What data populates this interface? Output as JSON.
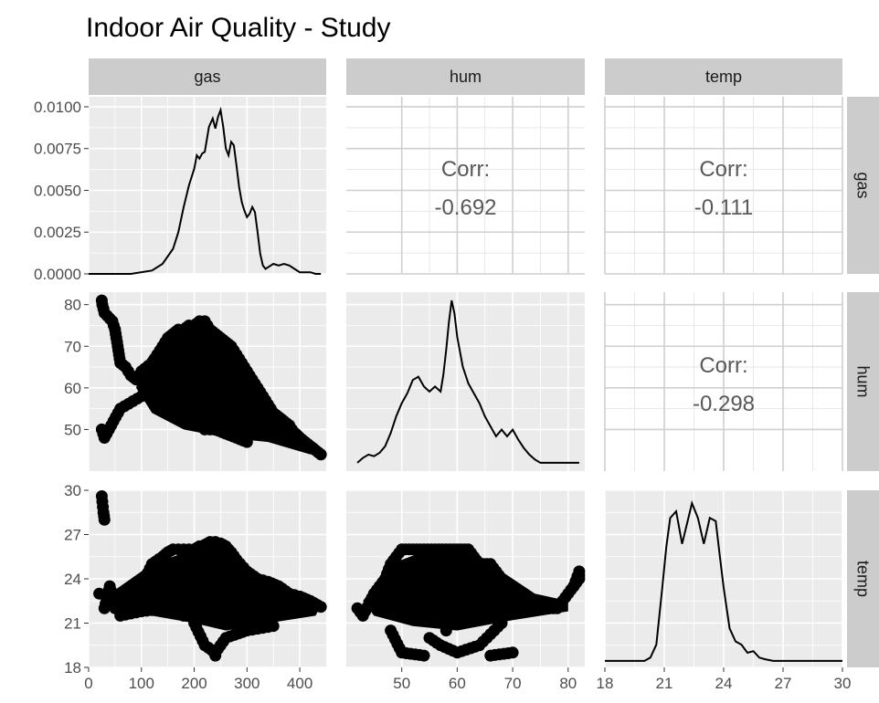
{
  "title": "Indoor Air Quality - Study",
  "chart_data": {
    "type": "scatter",
    "title": "Indoor Air Quality - Study",
    "layout": "pairs plot (3x3 matrix)",
    "variables": [
      "gas",
      "hum",
      "temp"
    ],
    "strip_labels": {
      "columns": [
        "gas",
        "hum",
        "temp"
      ],
      "rows": [
        "gas",
        "hum",
        "temp"
      ]
    },
    "axes": {
      "gas": {
        "lim": [
          0,
          450
        ],
        "ticks": [
          "0",
          "100",
          "200",
          "300",
          "400"
        ],
        "tick_values": [
          0,
          100,
          200,
          300,
          400
        ]
      },
      "hum": {
        "lim": [
          40,
          83
        ],
        "ticks": [
          "50",
          "60",
          "70",
          "80"
        ],
        "tick_values": [
          50,
          60,
          70,
          80
        ]
      },
      "temp": {
        "lim": [
          18,
          30
        ],
        "ticks": [
          "18",
          "21",
          "24",
          "27",
          "30"
        ],
        "tick_values": [
          18,
          21,
          24,
          27,
          30
        ]
      },
      "gas_density": {
        "lim": [
          0,
          0.0106
        ],
        "ticks": [
          "0.0000",
          "0.0025",
          "0.0050",
          "0.0075",
          "0.0100"
        ],
        "tick_values": [
          0,
          0.0025,
          0.005,
          0.0075,
          0.01
        ]
      }
    },
    "correlations": [
      {
        "row": "gas",
        "col": "hum",
        "label": "Corr:",
        "value": "-0.692"
      },
      {
        "row": "gas",
        "col": "temp",
        "label": "Corr:",
        "value": "-0.111"
      },
      {
        "row": "hum",
        "col": "temp",
        "label": "Corr:",
        "value": "-0.298"
      }
    ],
    "densities": {
      "gas": {
        "x": [
          0,
          80,
          120,
          140,
          160,
          170,
          180,
          190,
          200,
          205,
          210,
          215,
          220,
          228,
          235,
          240,
          245,
          250,
          255,
          260,
          265,
          270,
          275,
          280,
          285,
          290,
          295,
          300,
          305,
          310,
          315,
          320,
          325,
          330,
          335,
          340,
          350,
          360,
          370,
          380,
          390,
          400,
          410,
          420,
          430,
          440
        ],
        "y": [
          0,
          0,
          0.0002,
          0.0006,
          0.0015,
          0.0025,
          0.004,
          0.0053,
          0.0063,
          0.0071,
          0.0069,
          0.0072,
          0.0073,
          0.0088,
          0.0093,
          0.0087,
          0.0094,
          0.0098,
          0.0088,
          0.0075,
          0.0071,
          0.0079,
          0.0077,
          0.0065,
          0.0052,
          0.0043,
          0.0038,
          0.0034,
          0.0036,
          0.004,
          0.0037,
          0.0025,
          0.0012,
          0.0005,
          0.0003,
          0.0004,
          0.0006,
          0.0005,
          0.0006,
          0.0005,
          0.0003,
          0.0001,
          0.0001,
          0.0001,
          0,
          0
        ]
      },
      "hum": {
        "x": [
          42,
          43,
          44,
          45,
          46,
          47,
          48,
          49,
          50,
          51,
          52,
          53,
          54,
          55,
          56,
          57,
          57.5,
          58,
          58.5,
          59,
          59.5,
          60,
          61,
          62,
          63,
          64,
          65,
          66,
          67,
          68,
          69,
          70,
          71,
          72,
          73,
          74,
          75,
          76,
          77,
          78,
          79,
          80,
          81,
          82
        ],
        "y": [
          0.02,
          0.05,
          0.07,
          0.06,
          0.08,
          0.12,
          0.2,
          0.3,
          0.38,
          0.44,
          0.52,
          0.54,
          0.48,
          0.45,
          0.48,
          0.45,
          0.55,
          0.7,
          0.87,
          1.0,
          0.92,
          0.78,
          0.6,
          0.5,
          0.44,
          0.38,
          0.3,
          0.24,
          0.18,
          0.22,
          0.18,
          0.22,
          0.16,
          0.11,
          0.07,
          0.04,
          0.02,
          0.02,
          0.02,
          0.02,
          0.02,
          0.02,
          0.02,
          0.02
        ],
        "note": "relative density"
      },
      "temp": {
        "x": [
          18,
          20,
          20.3,
          20.6,
          20.9,
          21.1,
          21.3,
          21.6,
          21.9,
          22.2,
          22.4,
          22.7,
          23.0,
          23.3,
          23.6,
          23.8,
          24.0,
          24.3,
          24.6,
          24.9,
          25.2,
          25.5,
          25.8,
          26.1,
          26.5,
          30
        ],
        "y": [
          0,
          0,
          0.02,
          0.1,
          0.45,
          0.7,
          0.88,
          0.92,
          0.72,
          0.87,
          0.97,
          0.88,
          0.72,
          0.88,
          0.86,
          0.65,
          0.45,
          0.2,
          0.12,
          0.1,
          0.05,
          0.06,
          0.02,
          0.01,
          0,
          0
        ],
        "note": "relative density"
      }
    },
    "scatter": {
      "gas_vs_hum": {
        "description": "dense cloud, negative trend",
        "x": [
          25,
          26,
          30,
          45,
          50,
          55,
          60,
          70,
          80,
          90,
          100,
          120,
          140,
          150,
          160,
          170,
          180,
          190,
          200,
          210,
          220,
          230,
          240,
          250,
          260,
          270,
          280,
          290,
          300,
          310,
          320,
          330,
          340,
          350,
          360,
          370,
          380,
          390,
          400,
          410,
          420,
          430,
          440,
          150,
          200,
          220,
          240,
          260,
          280,
          300,
          180,
          230,
          265,
          320,
          350,
          25,
          30,
          60,
          100,
          130,
          170
        ],
        "y": [
          81,
          80,
          78,
          76,
          74,
          70,
          66,
          65,
          63,
          62,
          64,
          66,
          70,
          72,
          73,
          74,
          74,
          75,
          75,
          76,
          76,
          74,
          73,
          72,
          71,
          70,
          68,
          66,
          64,
          62,
          60,
          58,
          56,
          54,
          53,
          52,
          51,
          49,
          48,
          47,
          46,
          45,
          44,
          55,
          52,
          50,
          50,
          49,
          48,
          47,
          60,
          56,
          54,
          50,
          49,
          50,
          48,
          55,
          58,
          60,
          62
        ]
      },
      "gas_vs_temp": {
        "description": "dense cloud near 20-26",
        "x": [
          20,
          25,
          28,
          30,
          30,
          40,
          50,
          60,
          80,
          100,
          120,
          140,
          150,
          160,
          180,
          200,
          210,
          220,
          230,
          240,
          250,
          260,
          270,
          280,
          300,
          320,
          340,
          360,
          380,
          400,
          420,
          440,
          200,
          220,
          240,
          260,
          300,
          350,
          240,
          180,
          150,
          100,
          60
        ],
        "y": [
          23,
          29.6,
          28.5,
          28,
          22,
          23.5,
          22,
          22.5,
          23,
          23.5,
          25,
          25.5,
          25.8,
          26,
          26,
          26,
          26.2,
          26.3,
          26.5,
          26.5,
          26.4,
          26.2,
          25.8,
          25.3,
          24.5,
          24,
          23.8,
          23.5,
          23,
          22.8,
          22.5,
          22.1,
          21,
          19.5,
          19,
          20,
          20.5,
          20.8,
          18.8,
          21.5,
          22,
          21.8,
          21.5
        ]
      },
      "hum_vs_temp": {
        "description": "dense cloud, slight negative trend",
        "x": [
          42,
          43,
          45,
          47,
          48,
          50,
          52,
          54,
          56,
          58,
          60,
          62,
          64,
          66,
          68,
          70,
          72,
          74,
          76,
          78,
          80,
          82,
          82,
          81,
          55,
          57,
          60,
          64,
          68,
          48,
          50,
          54,
          66,
          70,
          58
        ],
        "y": [
          22,
          21.5,
          23,
          24,
          25,
          26,
          26,
          26,
          26,
          26,
          26,
          26,
          25,
          25,
          24,
          23.5,
          23,
          22.5,
          22,
          22,
          23,
          24,
          24.5,
          23.5,
          20,
          19.5,
          19,
          19.5,
          21,
          20.5,
          19,
          18.8,
          18.8,
          19,
          20.5
        ]
      }
    }
  }
}
